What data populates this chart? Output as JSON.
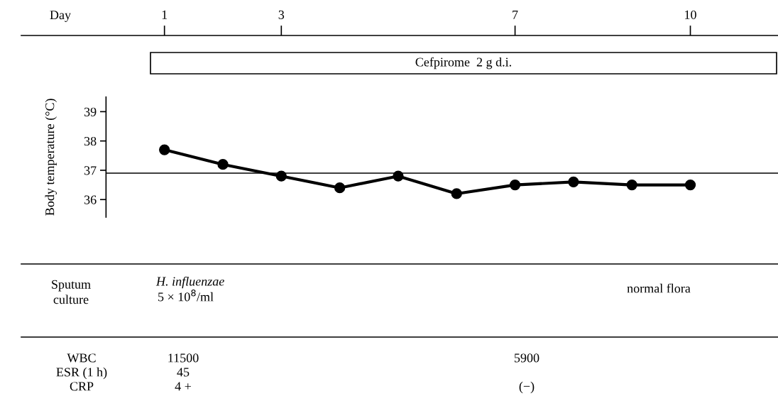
{
  "chart_data": {
    "type": "line",
    "xlabel": "Day",
    "ylabel": "Body temperature (°C)",
    "x": [
      1,
      2,
      3,
      4,
      5,
      6,
      7,
      8,
      9,
      10
    ],
    "series": [
      {
        "color": "#000000",
        "values": [
          37.7,
          37.2,
          36.8,
          36.4,
          36.8,
          36.2,
          36.5,
          36.6,
          36.5,
          36.5
        ]
      }
    ],
    "xlim": [
      -1.45,
      11.5
    ],
    "xticks": [
      1,
      3,
      7,
      10
    ],
    "ylim": [
      35.4,
      41.6
    ],
    "yticks": [
      36,
      37,
      38,
      39
    ],
    "ref_lines": [
      {
        "axis": "y",
        "value": 36.9,
        "color": "#000000"
      }
    ],
    "marker": "circle",
    "line_style": "solid",
    "grid": false,
    "legend": false,
    "annotations": [
      "Cefpirome  2 g d.i.",
      "Sputum\nculture",
      "H. influenzae",
      "5 × 10$^{8}$/ml",
      "normal flora",
      "WBC",
      "11500",
      "5900",
      "ESR (1 h)",
      "45",
      "CRP",
      "4 +",
      "(−)"
    ]
  }
}
